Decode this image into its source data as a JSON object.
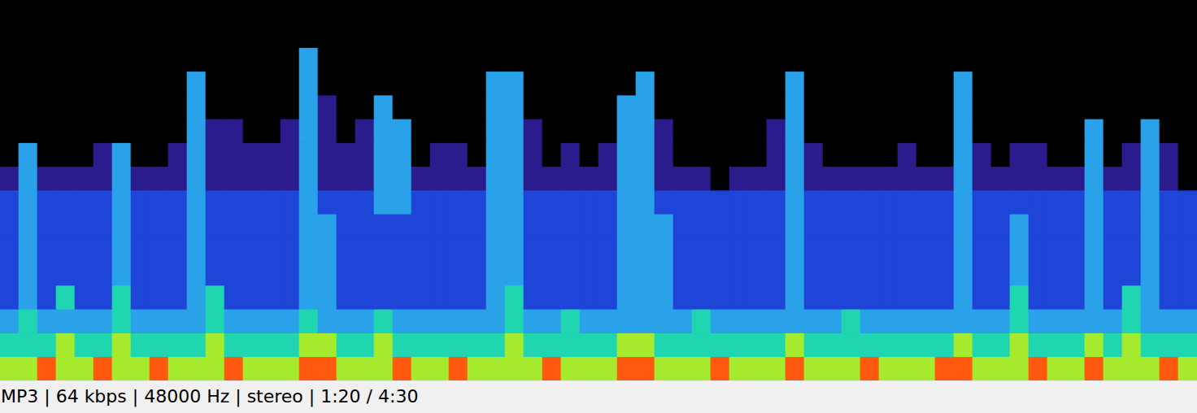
{
  "chart_data": {
    "type": "heatmap",
    "tick_labels": false,
    "cells": [
      [
        0,
        0,
        0,
        0,
        0,
        0,
        0,
        0,
        0,
        0,
        0,
        0,
        0,
        0,
        0,
        0,
        0,
        0,
        0,
        0,
        0,
        0,
        0,
        0,
        0,
        0,
        0,
        0,
        0,
        0,
        0,
        0,
        0,
        0,
        0,
        0,
        0,
        0,
        0,
        0,
        0,
        0,
        0,
        0,
        0,
        0,
        0,
        0,
        0,
        0,
        0,
        0,
        0,
        0,
        0,
        0,
        0,
        0,
        0,
        0,
        0,
        0,
        0,
        0
      ],
      [
        0,
        0,
        0,
        0,
        0,
        0,
        0,
        0,
        0,
        0,
        0,
        0,
        0,
        0,
        0,
        0,
        0,
        0,
        0,
        0,
        0,
        0,
        0,
        0,
        0,
        0,
        0,
        0,
        0,
        0,
        0,
        0,
        0,
        0,
        0,
        0,
        0,
        0,
        0,
        0,
        0,
        0,
        0,
        0,
        0,
        0,
        0,
        0,
        0,
        0,
        0,
        0,
        0,
        0,
        0,
        0,
        0,
        0,
        0,
        0,
        0,
        0,
        0,
        0
      ],
      [
        0,
        0,
        0,
        0,
        0,
        0,
        0,
        0,
        0,
        0,
        0,
        0,
        0,
        0,
        0,
        0,
        3,
        0,
        0,
        0,
        0,
        0,
        0,
        0,
        0,
        0,
        0,
        0,
        0,
        0,
        0,
        0,
        0,
        0,
        0,
        0,
        0,
        0,
        0,
        0,
        0,
        0,
        0,
        0,
        0,
        0,
        0,
        0,
        0,
        0,
        0,
        0,
        0,
        0,
        0,
        0,
        0,
        0,
        0,
        0,
        0,
        0,
        0,
        0
      ],
      [
        0,
        0,
        0,
        0,
        0,
        0,
        0,
        0,
        0,
        0,
        3,
        0,
        0,
        0,
        0,
        0,
        3,
        0,
        0,
        0,
        0,
        0,
        0,
        0,
        0,
        0,
        3,
        3,
        0,
        0,
        0,
        0,
        0,
        0,
        3,
        0,
        0,
        0,
        0,
        0,
        0,
        0,
        3,
        0,
        0,
        0,
        0,
        0,
        0,
        0,
        0,
        3,
        0,
        0,
        0,
        0,
        0,
        0,
        0,
        0,
        0,
        0,
        0,
        0
      ],
      [
        0,
        0,
        0,
        0,
        0,
        0,
        0,
        0,
        0,
        0,
        3,
        0,
        0,
        0,
        0,
        0,
        3,
        1,
        0,
        0,
        3,
        0,
        0,
        0,
        0,
        0,
        3,
        3,
        0,
        0,
        0,
        0,
        0,
        3,
        3,
        0,
        0,
        0,
        0,
        0,
        0,
        0,
        3,
        0,
        0,
        0,
        0,
        0,
        0,
        0,
        0,
        3,
        0,
        0,
        0,
        0,
        0,
        0,
        0,
        0,
        0,
        0,
        0,
        0
      ],
      [
        0,
        0,
        0,
        0,
        0,
        0,
        0,
        0,
        0,
        0,
        3,
        1,
        1,
        0,
        0,
        1,
        3,
        1,
        0,
        1,
        3,
        3,
        0,
        0,
        0,
        0,
        3,
        3,
        1,
        0,
        0,
        0,
        0,
        3,
        3,
        1,
        0,
        0,
        0,
        0,
        0,
        1,
        3,
        0,
        0,
        0,
        0,
        0,
        0,
        0,
        0,
        3,
        0,
        0,
        0,
        0,
        0,
        0,
        3,
        0,
        0,
        3,
        0,
        0
      ],
      [
        0,
        3,
        0,
        0,
        0,
        1,
        3,
        0,
        0,
        1,
        3,
        1,
        1,
        1,
        1,
        1,
        3,
        1,
        1,
        1,
        3,
        3,
        0,
        1,
        1,
        0,
        3,
        3,
        1,
        0,
        1,
        0,
        1,
        3,
        3,
        1,
        0,
        0,
        0,
        0,
        0,
        1,
        3,
        1,
        0,
        0,
        0,
        0,
        1,
        0,
        0,
        3,
        1,
        0,
        1,
        1,
        0,
        0,
        3,
        0,
        1,
        3,
        1,
        0
      ],
      [
        1,
        3,
        1,
        1,
        1,
        1,
        3,
        1,
        1,
        1,
        3,
        1,
        1,
        1,
        1,
        1,
        3,
        1,
        1,
        1,
        3,
        3,
        1,
        1,
        1,
        1,
        3,
        3,
        1,
        1,
        1,
        1,
        1,
        3,
        3,
        1,
        1,
        1,
        0,
        1,
        1,
        1,
        3,
        1,
        1,
        1,
        1,
        1,
        1,
        1,
        1,
        3,
        1,
        1,
        1,
        1,
        1,
        1,
        3,
        1,
        1,
        3,
        1,
        0
      ],
      [
        2,
        3,
        2,
        2,
        2,
        2,
        3,
        2,
        2,
        2,
        3,
        2,
        2,
        2,
        2,
        2,
        3,
        2,
        2,
        2,
        3,
        3,
        2,
        2,
        2,
        2,
        3,
        3,
        2,
        2,
        2,
        2,
        2,
        3,
        3,
        2,
        2,
        2,
        2,
        2,
        2,
        2,
        3,
        2,
        2,
        2,
        2,
        2,
        2,
        2,
        2,
        3,
        2,
        2,
        2,
        2,
        2,
        2,
        3,
        2,
        2,
        3,
        2,
        2
      ],
      [
        2,
        3,
        2,
        2,
        2,
        2,
        3,
        2,
        2,
        2,
        3,
        2,
        2,
        2,
        2,
        2,
        3,
        3,
        2,
        2,
        2,
        2,
        2,
        2,
        2,
        2,
        3,
        3,
        2,
        2,
        2,
        2,
        2,
        3,
        3,
        3,
        2,
        2,
        2,
        2,
        2,
        2,
        3,
        2,
        2,
        2,
        2,
        2,
        2,
        2,
        2,
        3,
        2,
        2,
        3,
        2,
        2,
        2,
        3,
        2,
        2,
        3,
        2,
        2
      ],
      [
        2,
        3,
        2,
        2,
        2,
        2,
        3,
        2,
        2,
        2,
        3,
        2,
        2,
        2,
        2,
        2,
        3,
        3,
        2,
        2,
        2,
        2,
        2,
        2,
        2,
        2,
        3,
        3,
        2,
        2,
        2,
        2,
        2,
        3,
        3,
        3,
        2,
        2,
        2,
        2,
        2,
        2,
        3,
        2,
        2,
        2,
        2,
        2,
        2,
        2,
        2,
        3,
        2,
        2,
        3,
        2,
        2,
        2,
        3,
        2,
        2,
        3,
        2,
        2
      ],
      [
        2,
        3,
        2,
        2,
        2,
        2,
        3,
        2,
        2,
        2,
        3,
        2,
        2,
        2,
        2,
        2,
        3,
        3,
        2,
        2,
        2,
        2,
        2,
        2,
        2,
        2,
        3,
        3,
        2,
        2,
        2,
        2,
        2,
        3,
        3,
        3,
        2,
        2,
        2,
        2,
        2,
        2,
        3,
        2,
        2,
        2,
        2,
        2,
        2,
        2,
        2,
        3,
        2,
        2,
        3,
        2,
        2,
        2,
        3,
        2,
        2,
        3,
        2,
        2
      ],
      [
        2,
        3,
        2,
        4,
        2,
        2,
        4,
        2,
        2,
        2,
        3,
        4,
        2,
        2,
        2,
        2,
        3,
        3,
        2,
        2,
        2,
        2,
        2,
        2,
        2,
        2,
        3,
        4,
        2,
        2,
        2,
        2,
        2,
        3,
        3,
        3,
        2,
        2,
        2,
        2,
        2,
        2,
        3,
        2,
        2,
        2,
        2,
        2,
        2,
        2,
        2,
        3,
        2,
        2,
        4,
        2,
        2,
        2,
        3,
        2,
        4,
        3,
        2,
        2
      ],
      [
        3,
        4,
        3,
        3,
        3,
        3,
        4,
        3,
        3,
        3,
        3,
        4,
        3,
        3,
        3,
        3,
        4,
        3,
        3,
        3,
        4,
        3,
        3,
        3,
        3,
        3,
        3,
        4,
        3,
        3,
        4,
        3,
        3,
        3,
        3,
        3,
        3,
        4,
        3,
        3,
        3,
        3,
        3,
        3,
        3,
        4,
        3,
        3,
        3,
        3,
        3,
        3,
        3,
        3,
        4,
        3,
        3,
        3,
        3,
        3,
        4,
        3,
        3,
        3
      ],
      [
        4,
        4,
        4,
        5,
        4,
        4,
        5,
        4,
        4,
        4,
        4,
        5,
        4,
        4,
        4,
        4,
        5,
        5,
        4,
        4,
        5,
        4,
        4,
        4,
        4,
        4,
        4,
        5,
        4,
        4,
        4,
        4,
        4,
        5,
        5,
        4,
        4,
        4,
        4,
        4,
        4,
        4,
        5,
        4,
        4,
        4,
        4,
        4,
        4,
        4,
        4,
        5,
        4,
        4,
        5,
        4,
        4,
        4,
        5,
        4,
        5,
        4,
        4,
        4
      ],
      [
        5,
        5,
        6,
        5,
        5,
        6,
        5,
        5,
        6,
        5,
        5,
        5,
        6,
        5,
        5,
        5,
        6,
        6,
        5,
        5,
        5,
        6,
        5,
        5,
        6,
        5,
        5,
        5,
        5,
        6,
        5,
        5,
        5,
        6,
        6,
        5,
        5,
        5,
        6,
        5,
        5,
        5,
        6,
        5,
        5,
        5,
        6,
        5,
        5,
        5,
        6,
        6,
        5,
        5,
        5,
        6,
        5,
        5,
        6,
        5,
        5,
        5,
        6,
        5
      ]
    ]
  },
  "status_bar": {
    "text": "MP3 | 64 kbps | 48000 Hz | stereo | 1:20 / 4:30"
  }
}
